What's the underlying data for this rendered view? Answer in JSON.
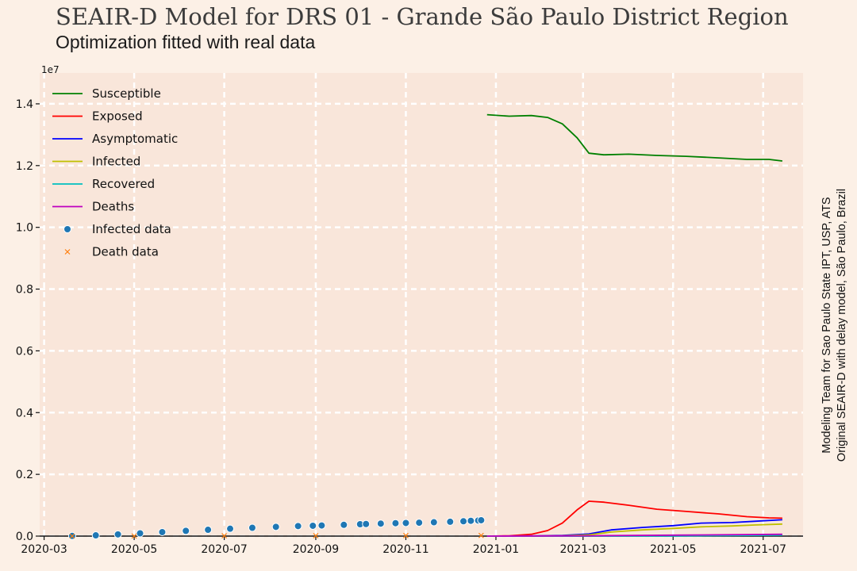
{
  "title": "SEAIR-D Model for DRS 01 - Grande São Paulo District Region",
  "subtitle": "Optimization fitted with real data",
  "credits": {
    "line1": "Modeling Team for Sao Paulo State IPT, USP, ATS",
    "line2": "Original SEAIR-D with delay model, São Paulo, Brazil"
  },
  "colors": {
    "background": "#fcf0e6",
    "plot_area": "#f9e6da",
    "grid": "#ffffff",
    "susceptible": "#008000",
    "exposed": "#ff0000",
    "asymptomatic": "#0000ff",
    "infected": "#bfbf00",
    "recovered": "#00bfbf",
    "deaths": "#bf00bf",
    "infected_data": "#1f77b4",
    "death_data": "#ff7f0e"
  },
  "chart_data": {
    "type": "line",
    "title": "SEAIR-D Model for DRS 01 - Grande São Paulo District Region",
    "subtitle": "Optimization fitted with real data",
    "xlabel": "",
    "ylabel": "",
    "y_multiplier_label": "1e7",
    "x_axis_type": "date",
    "xlim": [
      "2020-02-27",
      "2021-07-28"
    ],
    "ylim": [
      0,
      15000000
    ],
    "grid": true,
    "legend_position": "top-left",
    "x_ticks": [
      "2020-03",
      "2020-05",
      "2020-07",
      "2020-09",
      "2020-11",
      "2021-01",
      "2021-03",
      "2021-05",
      "2021-07"
    ],
    "x_tick_dates": [
      "2020-03-01",
      "2020-05-01",
      "2020-07-01",
      "2020-09-01",
      "2020-11-01",
      "2021-01-01",
      "2021-03-01",
      "2021-05-01",
      "2021-07-01"
    ],
    "y_ticks": [
      "0.0",
      "0.2",
      "0.4",
      "0.6",
      "0.8",
      "1.0",
      "1.2",
      "1.4"
    ],
    "y_tick_values": [
      0,
      2000000,
      4000000,
      6000000,
      8000000,
      10000000,
      12000000,
      14000000
    ],
    "series": [
      {
        "name": "Susceptible",
        "kind": "line",
        "color": "#008000",
        "x": [
          "2020-12-26",
          "2021-01-10",
          "2021-01-25",
          "2021-02-05",
          "2021-02-15",
          "2021-02-25",
          "2021-03-05",
          "2021-03-15",
          "2021-04-01",
          "2021-04-20",
          "2021-05-10",
          "2021-06-01",
          "2021-06-20",
          "2021-07-05",
          "2021-07-14"
        ],
        "y": [
          13650000,
          13600000,
          13620000,
          13560000,
          13350000,
          12900000,
          12400000,
          12350000,
          12370000,
          12330000,
          12300000,
          12250000,
          12200000,
          12200000,
          12150000
        ]
      },
      {
        "name": "Exposed",
        "kind": "line",
        "color": "#ff0000",
        "x": [
          "2020-12-26",
          "2021-01-10",
          "2021-01-25",
          "2021-02-05",
          "2021-02-15",
          "2021-02-25",
          "2021-03-05",
          "2021-03-15",
          "2021-04-01",
          "2021-04-20",
          "2021-05-10",
          "2021-06-01",
          "2021-06-20",
          "2021-07-05",
          "2021-07-14"
        ],
        "y": [
          0,
          10000,
          60000,
          180000,
          420000,
          850000,
          1130000,
          1100000,
          1000000,
          870000,
          800000,
          720000,
          630000,
          590000,
          580000
        ]
      },
      {
        "name": "Asymptomatic",
        "kind": "line",
        "color": "#0000ff",
        "x": [
          "2020-12-26",
          "2021-01-25",
          "2021-02-15",
          "2021-03-05",
          "2021-03-20",
          "2021-04-10",
          "2021-05-01",
          "2021-05-20",
          "2021-06-10",
          "2021-06-25",
          "2021-07-14"
        ],
        "y": [
          0,
          5000,
          20000,
          70000,
          200000,
          280000,
          340000,
          420000,
          440000,
          480000,
          530000
        ]
      },
      {
        "name": "Infected",
        "kind": "line",
        "color": "#bfbf00",
        "x": [
          "2020-12-26",
          "2021-01-25",
          "2021-02-15",
          "2021-03-05",
          "2021-03-20",
          "2021-04-10",
          "2021-05-01",
          "2021-05-20",
          "2021-06-10",
          "2021-06-25",
          "2021-07-14"
        ],
        "y": [
          0,
          3000,
          10000,
          40000,
          130000,
          200000,
          250000,
          300000,
          330000,
          360000,
          390000
        ]
      },
      {
        "name": "Recovered",
        "kind": "line",
        "color": "#00bfbf",
        "x": [
          "2020-12-26",
          "2021-03-05",
          "2021-05-01",
          "2021-07-14"
        ],
        "y": [
          0,
          0,
          5000,
          30000
        ]
      },
      {
        "name": "Deaths",
        "kind": "line",
        "color": "#bf00bf",
        "x": [
          "2020-12-26",
          "2021-03-05",
          "2021-05-01",
          "2021-07-14"
        ],
        "y": [
          0,
          10000,
          30000,
          60000
        ]
      },
      {
        "name": "Infected data",
        "kind": "scatter-dot",
        "color": "#1f77b4",
        "x": [
          "2020-03-20",
          "2020-04-05",
          "2020-04-20",
          "2020-05-05",
          "2020-05-20",
          "2020-06-05",
          "2020-06-20",
          "2020-07-05",
          "2020-07-20",
          "2020-08-05",
          "2020-08-20",
          "2020-08-30",
          "2020-09-05",
          "2020-09-20",
          "2020-10-01",
          "2020-10-05",
          "2020-10-15",
          "2020-10-25",
          "2020-11-01",
          "2020-11-10",
          "2020-11-20",
          "2020-12-01",
          "2020-12-10",
          "2020-12-15",
          "2020-12-20",
          "2020-12-22"
        ],
        "y": [
          5000,
          25000,
          55000,
          90000,
          130000,
          170000,
          205000,
          240000,
          270000,
          300000,
          325000,
          335000,
          345000,
          365000,
          385000,
          392000,
          405000,
          418000,
          425000,
          435000,
          448000,
          465000,
          480000,
          495000,
          505000,
          515000
        ]
      },
      {
        "name": "Death data",
        "kind": "scatter-x",
        "color": "#ff7f0e",
        "x": [
          "2020-03-20",
          "2020-05-01",
          "2020-07-01",
          "2020-09-01",
          "2020-11-01",
          "2020-12-22"
        ],
        "y": [
          100,
          3000,
          10000,
          15000,
          18000,
          21000
        ]
      }
    ]
  }
}
